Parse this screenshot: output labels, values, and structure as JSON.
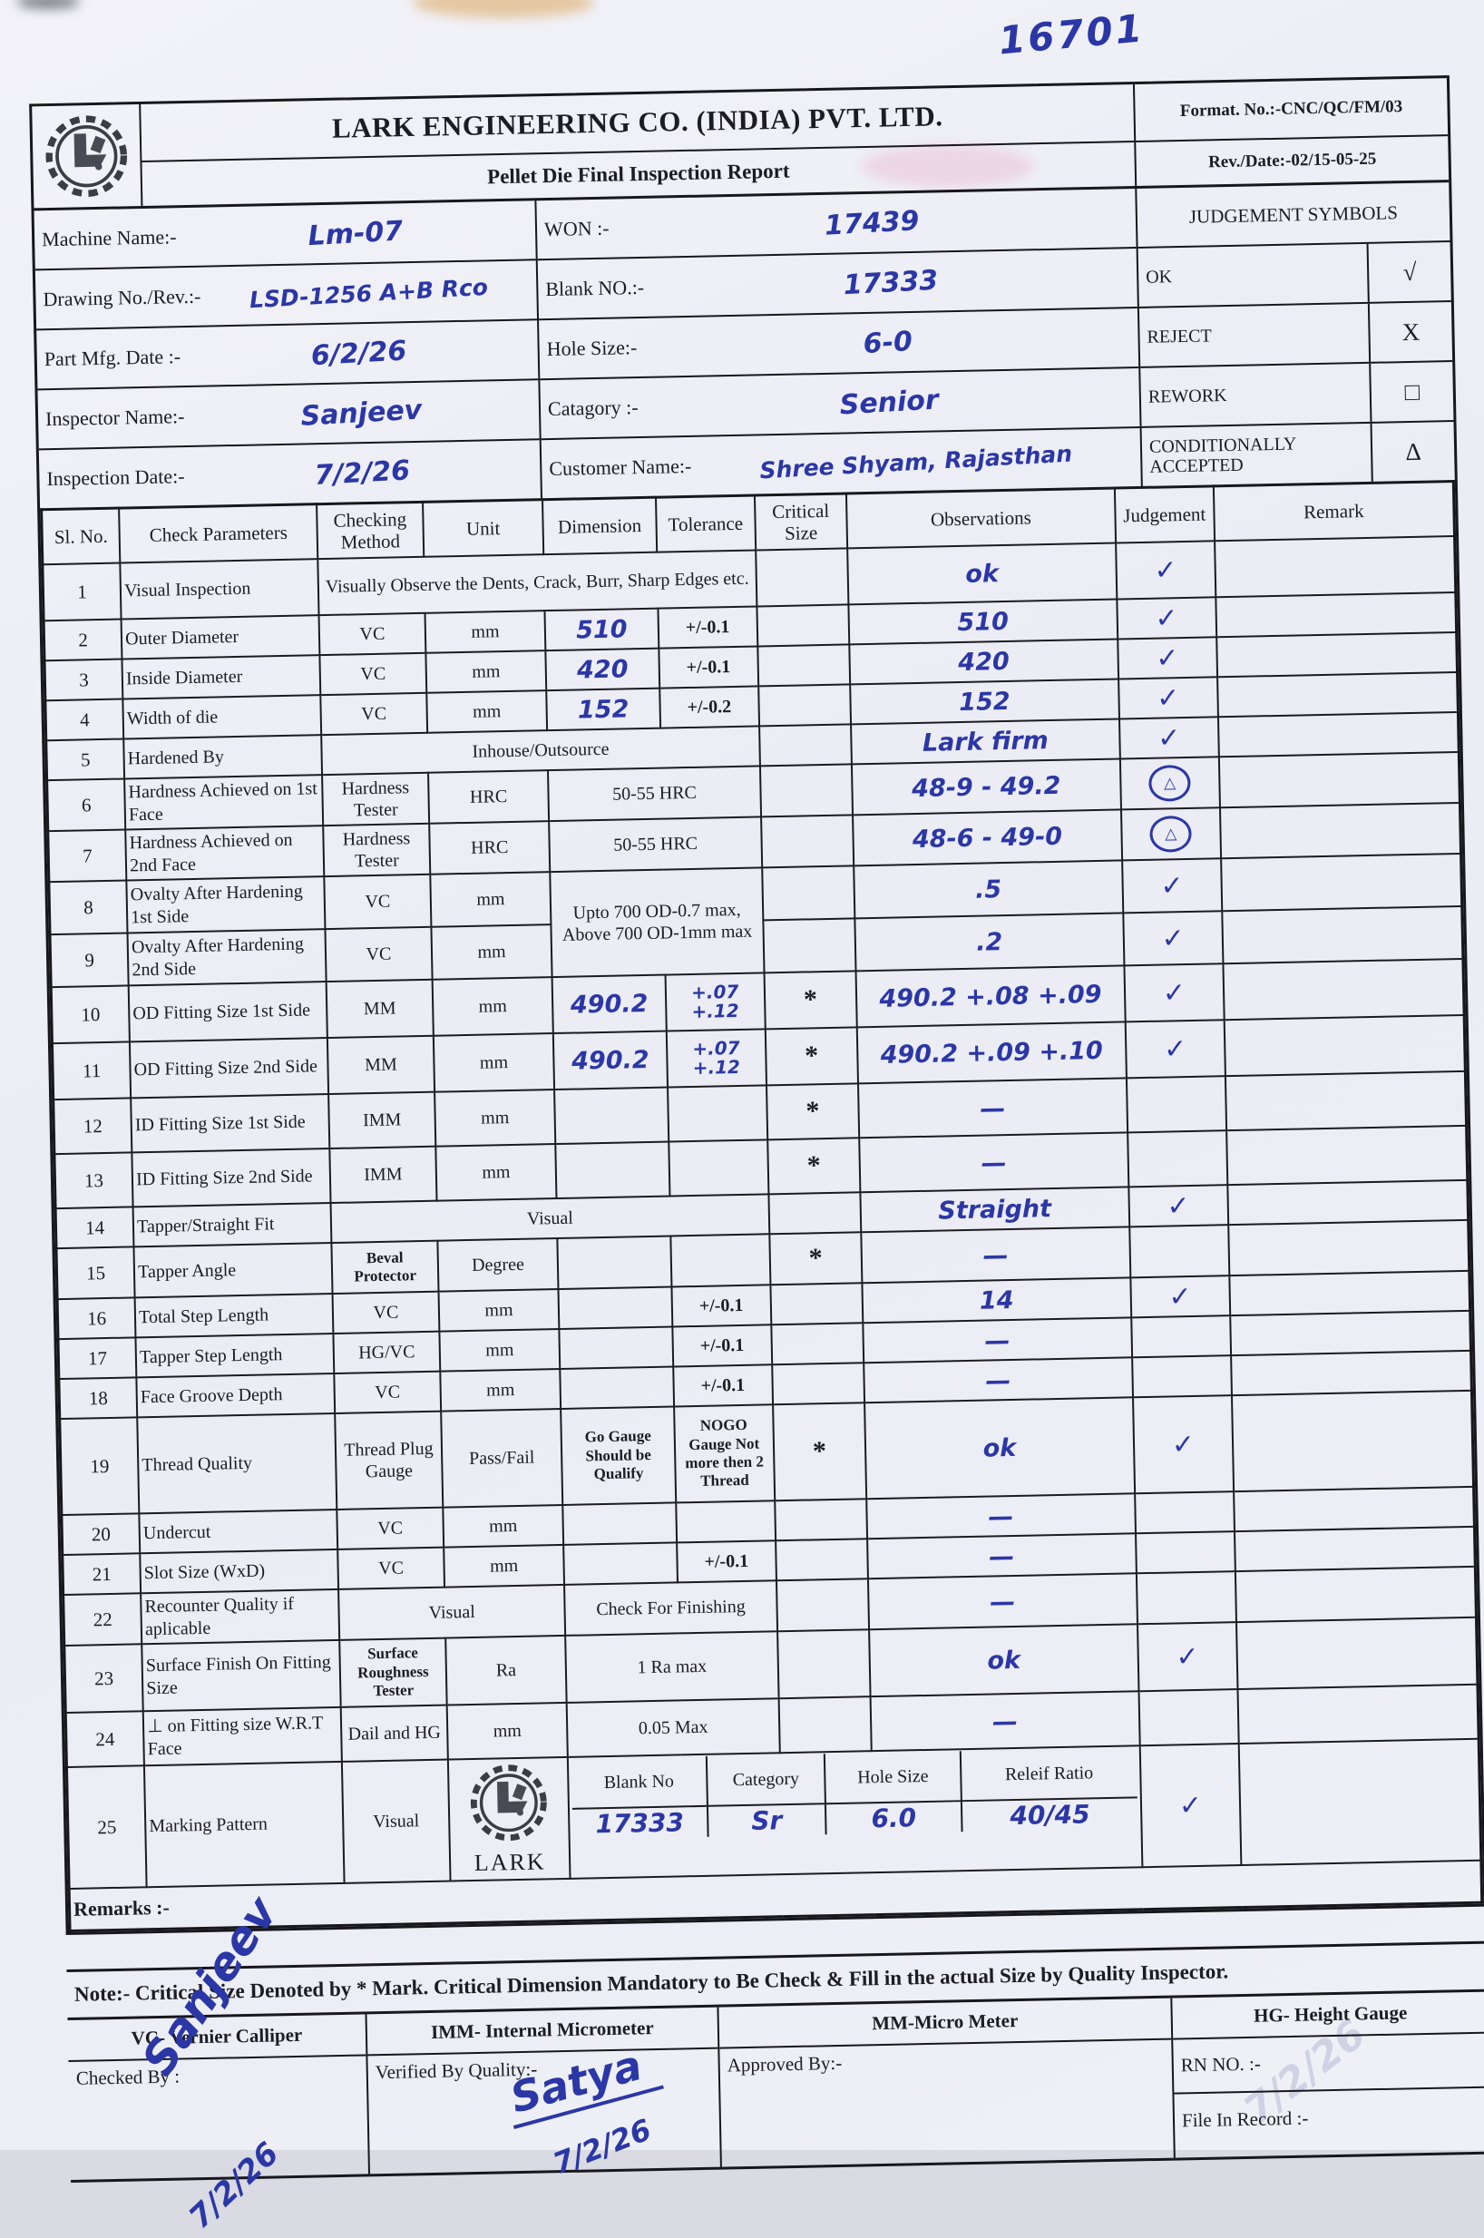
{
  "page": {
    "corner_number": "16701",
    "ghost_note": "7/2/26"
  },
  "header": {
    "company": "LARK ENGINEERING CO. (INDIA) PVT. LTD.",
    "title": "Pellet Die Final Inspection Report",
    "format_no": "Format. No.:-CNC/QC/FM/03",
    "rev_date": "Rev./Date:-02/15-05-25"
  },
  "info": {
    "machine_label": "Machine Name:-",
    "machine_value": "Lm-07",
    "drawing_label": "Drawing No./Rev.:-",
    "drawing_value": "LSD-1256 A+B Rco",
    "mfg_label": "Part Mfg. Date :-",
    "mfg_value": "6/2/26",
    "inspector_label": "Inspector Name:-",
    "inspector_value": "Sanjeev",
    "insp_date_label": "Inspection Date:-",
    "insp_date_value": "7/2/26",
    "won_label": "WON :-",
    "won_value": "17439",
    "blank_label": "Blank NO.:-",
    "blank_value": "17333",
    "hole_label": "Hole Size:-",
    "hole_value": "6-0",
    "category_label": "Catagory :-",
    "category_value": "Senior",
    "customer_label": "Customer Name:-",
    "customer_value": "Shree Shyam, Rajasthan"
  },
  "judgement_symbols": {
    "title": "JUDGEMENT SYMBOLS",
    "rows": [
      {
        "label": "OK",
        "symbol": "√"
      },
      {
        "label": "REJECT",
        "symbol": "X"
      },
      {
        "label": "REWORK",
        "symbol": "□"
      },
      {
        "label": "CONDITIONALLY ACCEPTED",
        "symbol": "Δ"
      }
    ]
  },
  "table": {
    "headers": [
      "Sl. No.",
      "Check Parameters",
      "Checking Method",
      "Unit",
      "Dimension",
      "Tolerance",
      "Critical Size",
      "Observations",
      "Judgement",
      "Remark"
    ],
    "rows": [
      [
        {
          "t": "1",
          "c": "sl"
        },
        {
          "t": "Visual Inspection",
          "c": "pl"
        },
        {
          "t": "Visually Observe the Dents, Crack, Burr, Sharp Edges etc.",
          "c": "pc",
          "s": 4
        },
        {
          "t": ""
        },
        {
          "t": "ok",
          "c": "hw"
        },
        {
          "t": "✓",
          "c": "tick"
        },
        {
          "t": ""
        }
      ],
      [
        {
          "t": "2",
          "c": "sl"
        },
        {
          "t": "Outer Diameter",
          "c": "pl"
        },
        {
          "t": "VC",
          "c": "pc"
        },
        {
          "t": "mm",
          "c": "pc"
        },
        {
          "t": "510",
          "c": "hw"
        },
        {
          "t": "+/-0.1",
          "c": "pbold"
        },
        {
          "t": ""
        },
        {
          "t": "510",
          "c": "hw"
        },
        {
          "t": "✓",
          "c": "tick"
        },
        {
          "t": ""
        }
      ],
      [
        {
          "t": "3",
          "c": "sl"
        },
        {
          "t": "Inside Diameter",
          "c": "pl"
        },
        {
          "t": "VC",
          "c": "pc"
        },
        {
          "t": "mm",
          "c": "pc"
        },
        {
          "t": "420",
          "c": "hw"
        },
        {
          "t": "+/-0.1",
          "c": "pbold"
        },
        {
          "t": ""
        },
        {
          "t": "420",
          "c": "hw"
        },
        {
          "t": "✓",
          "c": "tick"
        },
        {
          "t": ""
        }
      ],
      [
        {
          "t": "4",
          "c": "sl"
        },
        {
          "t": "Width of die",
          "c": "pl"
        },
        {
          "t": "VC",
          "c": "pc"
        },
        {
          "t": "mm",
          "c": "pc"
        },
        {
          "t": "152",
          "c": "hw"
        },
        {
          "t": "+/-0.2",
          "c": "pbold"
        },
        {
          "t": ""
        },
        {
          "t": "152",
          "c": "hw"
        },
        {
          "t": "✓",
          "c": "tick"
        },
        {
          "t": ""
        }
      ],
      [
        {
          "t": "5",
          "c": "sl"
        },
        {
          "t": "Hardened By",
          "c": "pl"
        },
        {
          "t": "Inhouse/Outsource",
          "c": "pc",
          "s": 4
        },
        {
          "t": ""
        },
        {
          "t": "Lark firm",
          "c": "hw"
        },
        {
          "t": "✓",
          "c": "tick"
        },
        {
          "t": ""
        }
      ],
      [
        {
          "t": "6",
          "c": "sl"
        },
        {
          "t": "Hardness Achieved on 1st Face",
          "c": "pl"
        },
        {
          "t": "Hardness Tester",
          "c": "pc"
        },
        {
          "t": "HRC",
          "c": "pc"
        },
        {
          "t": "50-55 HRC",
          "c": "pc",
          "s": 2
        },
        {
          "t": ""
        },
        {
          "t": "48-9 - 49.2",
          "c": "hw"
        },
        {
          "t": "△",
          "c": "circ"
        },
        {
          "t": ""
        }
      ],
      [
        {
          "t": "7",
          "c": "sl"
        },
        {
          "t": "Hardness Achieved on 2nd Face",
          "c": "pl"
        },
        {
          "t": "Hardness Tester",
          "c": "pc"
        },
        {
          "t": "HRC",
          "c": "pc"
        },
        {
          "t": "50-55 HRC",
          "c": "pc",
          "s": 2
        },
        {
          "t": ""
        },
        {
          "t": "48-6 - 49-0",
          "c": "hw"
        },
        {
          "t": "△",
          "c": "circ"
        },
        {
          "t": ""
        }
      ],
      [
        {
          "t": "8",
          "c": "sl"
        },
        {
          "t": "Ovalty After Hardening 1st Side",
          "c": "pl"
        },
        {
          "t": "VC",
          "c": "pc"
        },
        {
          "t": "mm",
          "c": "pc"
        },
        {
          "t": "Upto 700 OD-0.7 max,\nAbove 700 OD-1mm max",
          "c": "pc pre",
          "s": 2,
          "r": 2
        },
        {
          "t": ""
        },
        {
          "t": ".5",
          "c": "hw"
        },
        {
          "t": "✓",
          "c": "tick"
        },
        {
          "t": ""
        }
      ],
      [
        {
          "t": "9",
          "c": "sl"
        },
        {
          "t": "Ovalty After Hardening 2nd Side",
          "c": "pl"
        },
        {
          "t": "VC",
          "c": "pc"
        },
        {
          "t": "mm",
          "c": "pc"
        },
        {
          "t": ""
        },
        {
          "t": ".2",
          "c": "hw"
        },
        {
          "t": "✓",
          "c": "tick"
        },
        {
          "t": ""
        }
      ],
      [
        {
          "t": "10",
          "c": "sl"
        },
        {
          "t": "OD Fitting Size 1st Side",
          "c": "pl"
        },
        {
          "t": "MM",
          "c": "pc"
        },
        {
          "t": "mm",
          "c": "pc"
        },
        {
          "t": "490.2",
          "c": "hw"
        },
        {
          "t": "+.07\n+.12",
          "c": "hws pre"
        },
        {
          "t": "*",
          "c": "star"
        },
        {
          "t": "490.2 +.08 +.09",
          "c": "hw"
        },
        {
          "t": "✓",
          "c": "tick"
        },
        {
          "t": ""
        }
      ],
      [
        {
          "t": "11",
          "c": "sl"
        },
        {
          "t": "OD Fitting Size 2nd Side",
          "c": "pl"
        },
        {
          "t": "MM",
          "c": "pc"
        },
        {
          "t": "mm",
          "c": "pc"
        },
        {
          "t": "490.2",
          "c": "hw"
        },
        {
          "t": "+.07\n+.12",
          "c": "hws pre"
        },
        {
          "t": "*",
          "c": "star"
        },
        {
          "t": "490.2 +.09 +.10",
          "c": "hw"
        },
        {
          "t": "✓",
          "c": "tick"
        },
        {
          "t": ""
        }
      ],
      [
        {
          "t": "12",
          "c": "sl"
        },
        {
          "t": "ID Fitting Size 1st Side",
          "c": "pl"
        },
        {
          "t": "IMM",
          "c": "pc"
        },
        {
          "t": "mm",
          "c": "pc"
        },
        {
          "t": ""
        },
        {
          "t": ""
        },
        {
          "t": "*",
          "c": "star"
        },
        {
          "t": "—",
          "c": "dash"
        },
        {
          "t": ""
        },
        {
          "t": ""
        }
      ],
      [
        {
          "t": "13",
          "c": "sl"
        },
        {
          "t": "ID Fitting Size 2nd Side",
          "c": "pl"
        },
        {
          "t": "IMM",
          "c": "pc"
        },
        {
          "t": "mm",
          "c": "pc"
        },
        {
          "t": ""
        },
        {
          "t": ""
        },
        {
          "t": "*",
          "c": "star"
        },
        {
          "t": "—",
          "c": "dash"
        },
        {
          "t": ""
        },
        {
          "t": ""
        }
      ],
      [
        {
          "t": "14",
          "c": "sl"
        },
        {
          "t": "Tapper/Straight Fit",
          "c": "pl"
        },
        {
          "t": "Visual",
          "c": "pc",
          "s": 4
        },
        {
          "t": ""
        },
        {
          "t": "Straight",
          "c": "hw"
        },
        {
          "t": "✓",
          "c": "tick"
        },
        {
          "t": ""
        }
      ],
      [
        {
          "t": "15",
          "c": "sl"
        },
        {
          "t": "Tapper Angle",
          "c": "pl"
        },
        {
          "t": "Beval Protector",
          "c": "pb"
        },
        {
          "t": "Degree",
          "c": "pc"
        },
        {
          "t": ""
        },
        {
          "t": ""
        },
        {
          "t": "*",
          "c": "star"
        },
        {
          "t": "—",
          "c": "dash"
        },
        {
          "t": ""
        },
        {
          "t": ""
        }
      ],
      [
        {
          "t": "16",
          "c": "sl"
        },
        {
          "t": "Total Step Length",
          "c": "pl"
        },
        {
          "t": "VC",
          "c": "pc"
        },
        {
          "t": "mm",
          "c": "pc"
        },
        {
          "t": ""
        },
        {
          "t": "+/-0.1",
          "c": "pbold"
        },
        {
          "t": ""
        },
        {
          "t": "14",
          "c": "hw"
        },
        {
          "t": "✓",
          "c": "tick"
        },
        {
          "t": ""
        }
      ],
      [
        {
          "t": "17",
          "c": "sl"
        },
        {
          "t": "Tapper Step Length",
          "c": "pl"
        },
        {
          "t": "HG/VC",
          "c": "pc"
        },
        {
          "t": "mm",
          "c": "pc"
        },
        {
          "t": ""
        },
        {
          "t": "+/-0.1",
          "c": "pbold"
        },
        {
          "t": ""
        },
        {
          "t": "—",
          "c": "dash"
        },
        {
          "t": ""
        },
        {
          "t": ""
        }
      ],
      [
        {
          "t": "18",
          "c": "sl"
        },
        {
          "t": "Face Groove Depth",
          "c": "pl"
        },
        {
          "t": "VC",
          "c": "pc"
        },
        {
          "t": "mm",
          "c": "pc"
        },
        {
          "t": ""
        },
        {
          "t": "+/-0.1",
          "c": "pbold"
        },
        {
          "t": ""
        },
        {
          "t": "—",
          "c": "dash"
        },
        {
          "t": ""
        },
        {
          "t": ""
        }
      ],
      [
        {
          "t": "19",
          "c": "sl"
        },
        {
          "t": "Thread Quality",
          "c": "pl"
        },
        {
          "t": "Thread Plug Gauge",
          "c": "pc"
        },
        {
          "t": "Pass/Fail",
          "c": "pc"
        },
        {
          "t": "Go Gauge Should be Qualify",
          "c": "pb"
        },
        {
          "t": "NOGO Gauge Not more then 2 Thread",
          "c": "pb"
        },
        {
          "t": "*",
          "c": "star"
        },
        {
          "t": "ok",
          "c": "hw"
        },
        {
          "t": "✓",
          "c": "tick"
        },
        {
          "t": ""
        }
      ],
      [
        {
          "t": "20",
          "c": "sl"
        },
        {
          "t": "Undercut",
          "c": "pl"
        },
        {
          "t": "VC",
          "c": "pc"
        },
        {
          "t": "mm",
          "c": "pc"
        },
        {
          "t": ""
        },
        {
          "t": ""
        },
        {
          "t": ""
        },
        {
          "t": "—",
          "c": "dash"
        },
        {
          "t": ""
        },
        {
          "t": ""
        }
      ],
      [
        {
          "t": "21",
          "c": "sl"
        },
        {
          "t": "Slot Size (WxD)",
          "c": "pl"
        },
        {
          "t": "VC",
          "c": "pc"
        },
        {
          "t": "mm",
          "c": "pc"
        },
        {
          "t": ""
        },
        {
          "t": "+/-0.1",
          "c": "pbold"
        },
        {
          "t": ""
        },
        {
          "t": "—",
          "c": "dash"
        },
        {
          "t": ""
        },
        {
          "t": ""
        }
      ],
      [
        {
          "t": "22",
          "c": "sl"
        },
        {
          "t": "Recounter Quality  if aplicable",
          "c": "pl"
        },
        {
          "t": "Visual",
          "c": "pc",
          "s": 2
        },
        {
          "t": "Check For Finishing",
          "c": "pc",
          "s": 2
        },
        {
          "t": ""
        },
        {
          "t": "—",
          "c": "dash"
        },
        {
          "t": ""
        },
        {
          "t": ""
        }
      ],
      [
        {
          "t": "23",
          "c": "sl"
        },
        {
          "t": "Surface Finish On Fitting Size",
          "c": "pl"
        },
        {
          "t": "Surface Roughness Tester",
          "c": "pb"
        },
        {
          "t": "Ra",
          "c": "pc"
        },
        {
          "t": "1 Ra max",
          "c": "pc",
          "s": 2
        },
        {
          "t": ""
        },
        {
          "t": "ok",
          "c": "hw"
        },
        {
          "t": "✓",
          "c": "tick"
        },
        {
          "t": ""
        }
      ],
      [
        {
          "t": "24",
          "c": "sl"
        },
        {
          "t": "⊥ on Fitting size W.R.T Face",
          "c": "pl"
        },
        {
          "t": "Dail and HG",
          "c": "pc"
        },
        {
          "t": "mm",
          "c": "pc"
        },
        {
          "t": "0.05 Max",
          "c": "pc",
          "s": 2
        },
        {
          "t": ""
        },
        {
          "t": "—",
          "c": "dash"
        },
        {
          "t": ""
        },
        {
          "t": ""
        }
      ]
    ]
  },
  "marking": {
    "no": "25",
    "param": "Marking Pattern",
    "method": "Visual",
    "lark": "LARK",
    "headers": [
      "Blank No",
      "Category",
      "Hole Size",
      "Releif Ratio"
    ],
    "values": [
      "17333",
      "Sr",
      "6.0",
      "40/45"
    ],
    "judge": "✓"
  },
  "remarks_label": "Remarks :-",
  "note": "Note:- Critical Size Denoted by * Mark. Critical Dimension Mandatory to Be Check & Fill in the actual Size by Quality Inspector.",
  "legend": {
    "vc": "VC- Vernier Calliper",
    "imm": "IMM- Internal Micrometer",
    "mm": "MM-Micro Meter",
    "hg": "HG- Height Gauge"
  },
  "footer": {
    "checked_label": "Checked By :",
    "verified_label": "Verified By Quality:-",
    "approved_label": "Approved By:-",
    "rn_label": "RN NO. :-",
    "file_label": "File In Record :-",
    "checked_name": "Sanjeev",
    "checked_date": "7/2/26",
    "verified_name": "Satya",
    "verified_date": "7/2/26"
  }
}
